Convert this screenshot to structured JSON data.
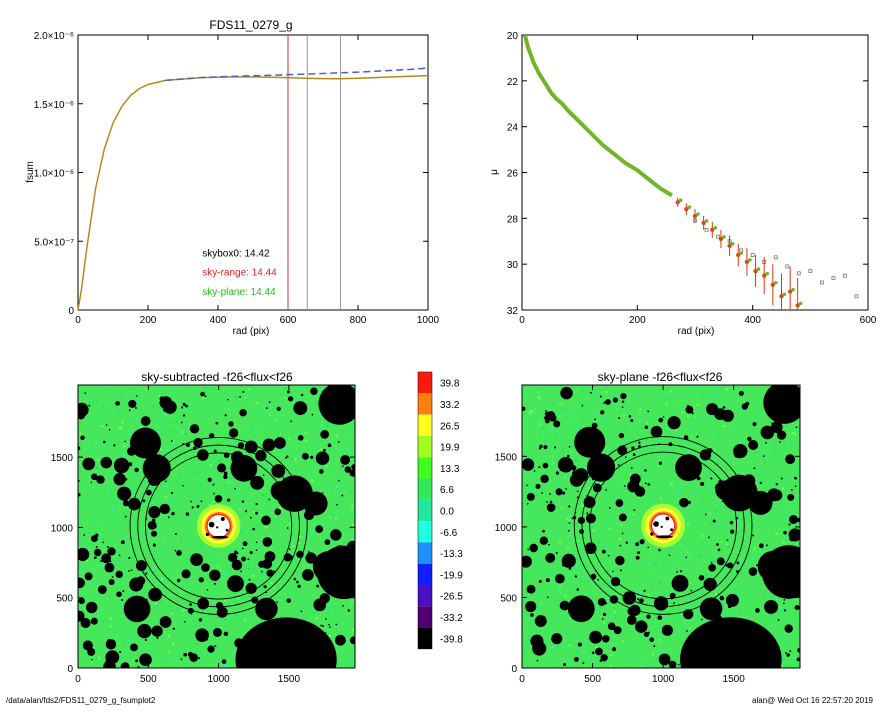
{
  "footer": {
    "left": "/data/alan/fds2/FDS11_0279_g_fsumplot2",
    "right": "alan@  Wed Oct 16 22:57:20 2019"
  },
  "chart_data": [
    {
      "id": "growth",
      "type": "line",
      "title": "FDS11_0279_g",
      "xlabel": "rad (pix)",
      "ylabel": "fsum",
      "xlim": [
        0,
        1000
      ],
      "ylim": [
        0,
        2e-06
      ],
      "xticks": [
        "0",
        "200",
        "400",
        "600",
        "800",
        "1000"
      ],
      "xtick_values": [
        0,
        200,
        400,
        600,
        800,
        1000
      ],
      "yticks": [
        "0",
        "5.0×10⁻⁷",
        "1.0×10⁻⁶",
        "1.5×10⁻⁶",
        "2.0×10⁻⁶"
      ],
      "ytick_values": [
        0,
        5e-07,
        1e-06,
        1.5e-06,
        2e-06
      ],
      "series": [
        {
          "style": "solid",
          "color": "#b58a1c",
          "x": [
            0,
            10,
            25,
            50,
            75,
            100,
            125,
            150,
            175,
            200,
            250,
            300,
            350,
            400,
            450,
            500,
            550,
            600,
            650,
            700,
            750,
            800,
            850,
            900,
            950,
            1000
          ],
          "y": [
            0,
            1.5e-07,
            4.5e-07,
            8.8e-07,
            1.17e-06,
            1.36e-06,
            1.48e-06,
            1.56e-06,
            1.61e-06,
            1.64e-06,
            1.67e-06,
            1.68e-06,
            1.69e-06,
            1.693e-06,
            1.695e-06,
            1.695e-06,
            1.693e-06,
            1.69e-06,
            1.685e-06,
            1.683e-06,
            1.682e-06,
            1.685e-06,
            1.69e-06,
            1.695e-06,
            1.7e-06,
            1.705e-06
          ]
        },
        {
          "style": "dashed",
          "color": "#4a5ec8",
          "x": [
            250,
            300,
            350,
            400,
            450,
            500,
            550,
            600,
            650,
            700,
            750,
            800,
            850,
            900,
            950,
            1000
          ],
          "y": [
            1.67e-06,
            1.68e-06,
            1.69e-06,
            1.695e-06,
            1.7e-06,
            1.703e-06,
            1.707e-06,
            1.712e-06,
            1.716e-06,
            1.72e-06,
            1.725e-06,
            1.73e-06,
            1.737e-06,
            1.743e-06,
            1.75e-06,
            1.76e-06
          ]
        }
      ],
      "vlines": [
        {
          "x": 600,
          "color": "#d03030"
        },
        {
          "x": 655,
          "color": "#999999"
        },
        {
          "x": 750,
          "color": "#999999"
        }
      ],
      "annotations": [
        {
          "text": "skybox0: 14.42",
          "color": "#000000",
          "x": 355,
          "y": 3.9e-07
        },
        {
          "text": "sky-range: 14.44",
          "color": "#e02020",
          "x": 355,
          "y": 2.5e-07
        },
        {
          "text": "sky-plane: 14.44",
          "color": "#20c020",
          "x": 355,
          "y": 1.1e-07
        }
      ]
    },
    {
      "id": "profile",
      "type": "scatter",
      "title": "",
      "xlabel": "rad (pix)",
      "ylabel": "μ",
      "xlim": [
        0,
        600
      ],
      "ylim": [
        32,
        20
      ],
      "xticks": [
        "0",
        "200",
        "400",
        "600"
      ],
      "xtick_values": [
        0,
        200,
        400,
        600
      ],
      "yticks": [
        "20",
        "22",
        "24",
        "26",
        "28",
        "30",
        "32"
      ],
      "ytick_values": [
        20,
        22,
        24,
        26,
        28,
        30,
        32
      ],
      "profile_main": {
        "color": "#6fb52a",
        "x": [
          5,
          10,
          20,
          30,
          40,
          50,
          60,
          70,
          80,
          100,
          120,
          140,
          160,
          180,
          200,
          220,
          240,
          260
        ],
        "y": [
          20.0,
          20.5,
          21.2,
          21.7,
          22.1,
          22.5,
          22.8,
          23.0,
          23.3,
          23.8,
          24.3,
          24.8,
          25.2,
          25.6,
          25.9,
          26.3,
          26.7,
          27.0
        ]
      },
      "profile_points": [
        {
          "x": 270,
          "y": 27.3,
          "err": 0.2
        },
        {
          "x": 285,
          "y": 27.6,
          "err": 0.25
        },
        {
          "x": 300,
          "y": 27.9,
          "err": 0.3
        },
        {
          "x": 315,
          "y": 28.2,
          "err": 0.3
        },
        {
          "x": 330,
          "y": 28.5,
          "err": 0.35
        },
        {
          "x": 345,
          "y": 28.9,
          "err": 0.4
        },
        {
          "x": 360,
          "y": 29.2,
          "err": 0.45
        },
        {
          "x": 375,
          "y": 29.6,
          "err": 0.5
        },
        {
          "x": 390,
          "y": 29.9,
          "err": 0.6
        },
        {
          "x": 405,
          "y": 30.3,
          "err": 0.7
        },
        {
          "x": 420,
          "y": 30.5,
          "err": 0.8
        },
        {
          "x": 435,
          "y": 30.9,
          "err": 0.9
        },
        {
          "x": 450,
          "y": 31.4,
          "err": 1.0
        },
        {
          "x": 465,
          "y": 31.2,
          "err": 1.1
        },
        {
          "x": 478,
          "y": 31.8,
          "err": 1.2
        }
      ],
      "sky_points": {
        "color": "#777777",
        "x": [
          300,
          320,
          340,
          360,
          380,
          400,
          420,
          440,
          460,
          480,
          500,
          520,
          540,
          560,
          580
        ],
        "y": [
          28.1,
          28.5,
          28.8,
          29.0,
          29.4,
          29.6,
          29.9,
          29.7,
          30.1,
          30.4,
          30.3,
          30.8,
          30.6,
          30.5,
          31.4
        ]
      }
    }
  ],
  "images": [
    {
      "id": "sky-subtracted",
      "title": "sky-subtracted -f26<flux<f26",
      "xticks": [
        "0",
        "500",
        "1000",
        "1500"
      ],
      "yticks": [
        "0",
        "500",
        "1000",
        "1500"
      ],
      "range": [
        0,
        1970
      ]
    },
    {
      "id": "sky-plane",
      "title": "sky-plane -f26<flux<f26",
      "xticks": [
        "0",
        "500",
        "1000",
        "1500"
      ],
      "yticks": [
        "0",
        "500",
        "1000",
        "1500"
      ],
      "range": [
        0,
        1970
      ]
    }
  ],
  "colorbar": {
    "labels": [
      "39.8",
      "33.2",
      "26.5",
      "19.9",
      "13.3",
      "6.6",
      "0.0",
      "-6.6",
      "-13.3",
      "-19.9",
      "-26.5",
      "-33.2",
      "-39.8"
    ],
    "colors": [
      "#ff1a10",
      "#ff7f10",
      "#ffff20",
      "#a0ff20",
      "#40ff20",
      "#30e85a",
      "#20e8a0",
      "#20ffe0",
      "#2090ff",
      "#1020ff",
      "#4a10c8",
      "#500070",
      "#000000"
    ]
  }
}
